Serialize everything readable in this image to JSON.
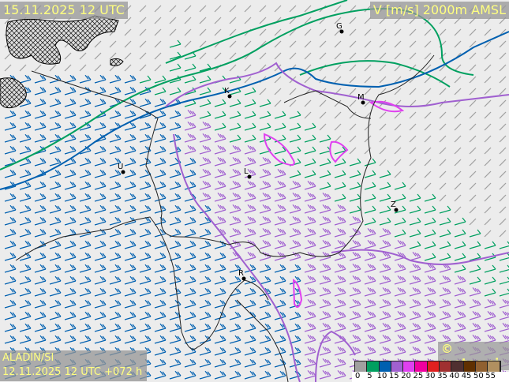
{
  "header": {
    "valid_time": "15.11.2025 12 UTC",
    "field": "V [m/s] 2000m AMSL"
  },
  "footer": {
    "model": "ALADIN/SI",
    "run": "12.11.2025 12 UTC +072 h",
    "copyright": "© meteo.si"
  },
  "legend": {
    "unit": "m/s",
    "ticks": [
      "0",
      "5",
      "10",
      "15",
      "20",
      "25",
      "30",
      "35",
      "40",
      "45",
      "50",
      "55"
    ],
    "colors": [
      "#a0a0a0",
      "#00a060",
      "#0060b0",
      "#a060d0",
      "#e040f0",
      "#f000a0",
      "#e02020",
      "#a03030",
      "#503030",
      "#603000",
      "#906030",
      "#b09060"
    ]
  },
  "map": {
    "cities": [
      "G",
      "K",
      "M",
      "L",
      "U",
      "Z",
      "R"
    ],
    "contours": {
      "5": "#00a060",
      "10": "#0060b0",
      "15": "#a060d0",
      "20": "#e040f0"
    },
    "hatched_area": "terrain above 2000 m"
  }
}
